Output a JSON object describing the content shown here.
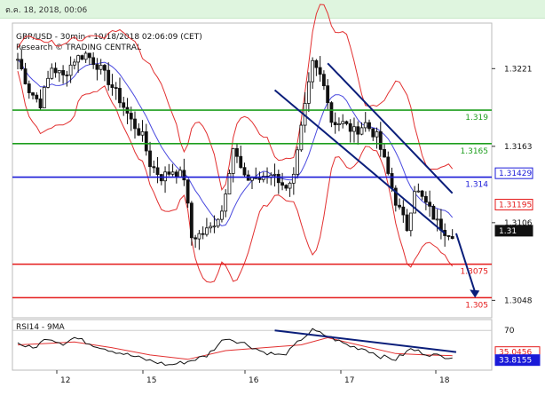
{
  "top_bar": {
    "date_text": "ต.ค. 18, 2018, 00:06"
  },
  "header": {
    "line1": "GBP/USD - 30min - 10/18/2018 02:06:09 (CET)",
    "line2": "Research © TRADING CENTRAL"
  },
  "colors": {
    "green": "#1e9e1e",
    "red": "#e41a1a",
    "blue": "#1a1ad8",
    "navy": "#0a1e7a",
    "bb": "#e23030",
    "ma": "#4a4adf"
  },
  "chart_data": [
    {
      "type": "candlestick",
      "title": "GBP/USD - 30min - 10/18/2018 02:06:09 (CET)",
      "ylim": [
        1.3035,
        1.3255
      ],
      "y_ticks": [
        1.3221,
        1.3163,
        1.3106,
        1.3048
      ],
      "y_tick_labels": [
        "1.3221",
        "1.3163",
        "1.3106",
        "1.3048"
      ],
      "x_tick_labels": [
        "12",
        "15",
        "16",
        "17",
        "18"
      ],
      "close_path": [
        [
          0,
          1.3228
        ],
        [
          3,
          1.3205
        ],
        [
          6,
          1.3195
        ],
        [
          9,
          1.3222
        ],
        [
          12,
          1.3215
        ],
        [
          15,
          1.3228
        ],
        [
          18,
          1.3232
        ],
        [
          21,
          1.3224
        ],
        [
          24,
          1.3212
        ],
        [
          27,
          1.3198
        ],
        [
          30,
          1.3182
        ],
        [
          33,
          1.317
        ],
        [
          35,
          1.315
        ],
        [
          38,
          1.314
        ],
        [
          41,
          1.3145
        ],
        [
          44,
          1.314
        ],
        [
          46,
          1.3095
        ],
        [
          49,
          1.3098
        ],
        [
          51,
          1.3102
        ],
        [
          54,
          1.3115
        ],
        [
          57,
          1.3162
        ],
        [
          60,
          1.3138
        ],
        [
          62,
          1.314
        ],
        [
          65,
          1.3138
        ],
        [
          68,
          1.3144
        ],
        [
          70,
          1.3132
        ],
        [
          73,
          1.314
        ],
        [
          75,
          1.3175
        ],
        [
          78,
          1.3225
        ],
        [
          81,
          1.3212
        ],
        [
          83,
          1.3182
        ],
        [
          86,
          1.318
        ],
        [
          89,
          1.3174
        ],
        [
          92,
          1.318
        ],
        [
          95,
          1.317
        ],
        [
          97,
          1.3152
        ],
        [
          100,
          1.3122
        ],
        [
          103,
          1.3102
        ],
        [
          105,
          1.3132
        ],
        [
          108,
          1.312
        ],
        [
          111,
          1.3106
        ],
        [
          113,
          1.31
        ],
        [
          115,
          1.3098
        ]
      ],
      "levels": [
        {
          "value": 1.319,
          "label": "1.319",
          "color": "green"
        },
        {
          "value": 1.3165,
          "label": "1.3165",
          "color": "green"
        },
        {
          "value": 1.314,
          "label": "1.314",
          "color": "blue"
        },
        {
          "value": 1.3075,
          "label": "1.3075",
          "color": "red"
        },
        {
          "value": 1.305,
          "label": "1.305",
          "color": "red"
        }
      ],
      "price_tags": [
        {
          "value": 1.31429,
          "label": "1.31429",
          "color": "blue"
        },
        {
          "value": 1.31195,
          "label": "1.31195",
          "color": "red"
        },
        {
          "value": 1.31,
          "label": "1.31",
          "color": "black"
        }
      ],
      "channel_upper": [
        [
          82,
          1.3225
        ],
        [
          115,
          1.3128
        ]
      ],
      "channel_lower": [
        [
          68,
          1.3205
        ],
        [
          113,
          1.3098
        ]
      ],
      "forecast_arrow": [
        [
          116,
          1.3098
        ],
        [
          121,
          1.305
        ]
      ]
    },
    {
      "type": "line",
      "title": "RSI14 - 9MA",
      "ylim": [
        15,
        85
      ],
      "y_ticks": [
        70
      ],
      "y_tick_labels": [
        "70"
      ],
      "rsi_path": [
        [
          0,
          52
        ],
        [
          4,
          45
        ],
        [
          8,
          60
        ],
        [
          12,
          52
        ],
        [
          15,
          60
        ],
        [
          20,
          50
        ],
        [
          25,
          42
        ],
        [
          30,
          35
        ],
        [
          35,
          28
        ],
        [
          40,
          22
        ],
        [
          45,
          27
        ],
        [
          50,
          35
        ],
        [
          55,
          60
        ],
        [
          60,
          52
        ],
        [
          65,
          40
        ],
        [
          70,
          35
        ],
        [
          72,
          42
        ],
        [
          75,
          58
        ],
        [
          78,
          70
        ],
        [
          82,
          62
        ],
        [
          85,
          55
        ],
        [
          88,
          48
        ],
        [
          92,
          44
        ],
        [
          96,
          34
        ],
        [
          100,
          30
        ],
        [
          104,
          44
        ],
        [
          108,
          38
        ],
        [
          112,
          34
        ],
        [
          115,
          33.8
        ]
      ],
      "ma_path": [
        [
          0,
          50
        ],
        [
          8,
          52
        ],
        [
          15,
          54
        ],
        [
          25,
          46
        ],
        [
          35,
          36
        ],
        [
          45,
          30
        ],
        [
          55,
          42
        ],
        [
          65,
          46
        ],
        [
          75,
          50
        ],
        [
          82,
          60
        ],
        [
          90,
          50
        ],
        [
          100,
          38
        ],
        [
          108,
          36
        ],
        [
          115,
          35
        ]
      ],
      "trend_line": [
        [
          68,
          70
        ],
        [
          116,
          40
        ]
      ],
      "value_tags": [
        {
          "value": 35.0456,
          "label": "35.0456",
          "color": "red"
        },
        {
          "value": 33.8155,
          "label": "33.8155",
          "color": "blue"
        }
      ]
    }
  ]
}
